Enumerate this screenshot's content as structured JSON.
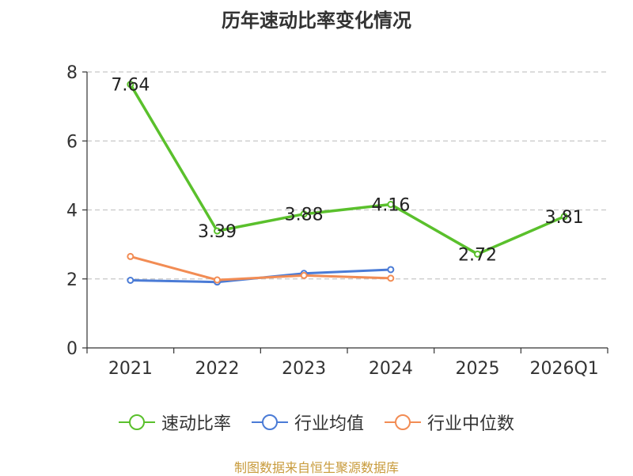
{
  "chart_data": {
    "type": "line",
    "title": "历年速动比率变化情况",
    "categories": [
      "2021",
      "2022",
      "2023",
      "2024",
      "2025",
      "2026Q1"
    ],
    "ylim": [
      0,
      8
    ],
    "yticks": [
      0,
      2,
      4,
      6,
      8
    ],
    "grid": true,
    "legend_position": "bottom",
    "series": [
      {
        "name": "速动比率",
        "color": "#5ac02c",
        "values": [
          7.64,
          3.39,
          3.88,
          4.16,
          2.72,
          3.81
        ],
        "labels": [
          "7.64",
          "3.39",
          "3.88",
          "4.16",
          "2.72",
          "3.81"
        ]
      },
      {
        "name": "行业均值",
        "color": "#4a7bd6",
        "values": [
          1.96,
          1.91,
          2.16,
          2.27,
          null,
          null
        ]
      },
      {
        "name": "行业中位数",
        "color": "#f28c54",
        "values": [
          2.65,
          1.97,
          2.1,
          2.02,
          null,
          null
        ]
      }
    ]
  },
  "source": "制图数据来自恒生聚源数据库"
}
